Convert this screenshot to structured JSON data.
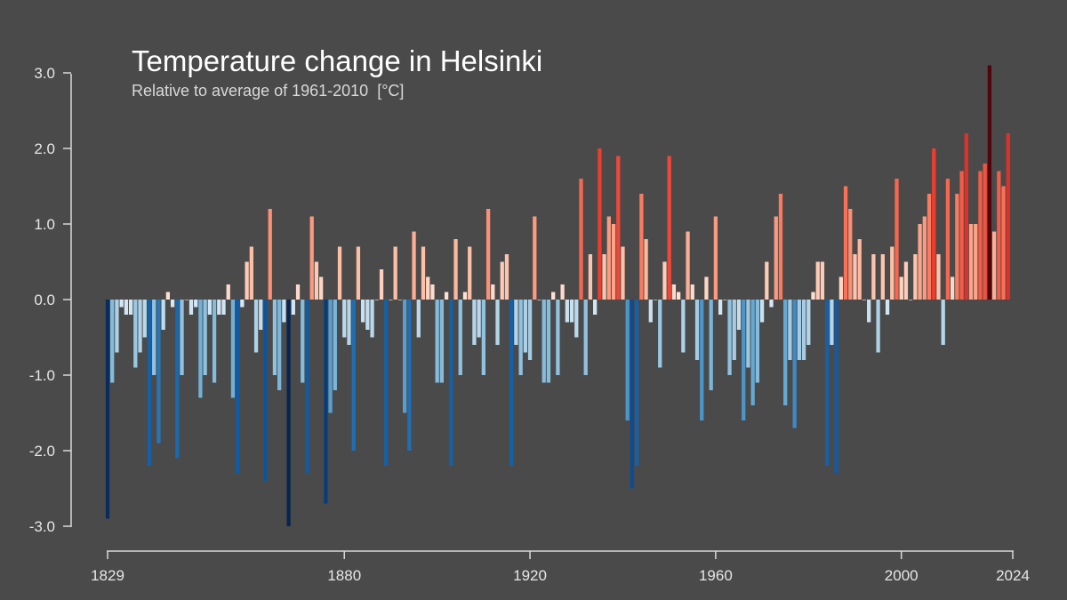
{
  "chart_data": {
    "type": "bar",
    "title": "Temperature change in Helsinki",
    "subtitle": "Relative to average of 1961-2010  [°C]",
    "xlabel": "",
    "ylabel": "",
    "x_start": 1829,
    "x_end": 2024,
    "xlim": [
      1829,
      2024
    ],
    "ylim": [
      -3.0,
      3.0
    ],
    "x_ticks": [
      "1829",
      "1880",
      "1920",
      "1960",
      "2000",
      "2024"
    ],
    "y_ticks": [
      "3.0",
      "2.0",
      "1.0",
      "0.0",
      "-1.0",
      "-2.0",
      "-3.0"
    ],
    "grid": false,
    "legend": "none",
    "colormap": "diverging blue-white-red",
    "colors": {
      "background": "#4a4a4a",
      "axis": "#d9d9d9",
      "text": "#e6e6e6"
    },
    "values": [
      -2.9,
      -1.1,
      -0.7,
      -0.1,
      -0.2,
      -0.2,
      -0.9,
      -0.7,
      -0.5,
      -2.2,
      -1.0,
      -1.9,
      -0.4,
      0.1,
      -0.1,
      -2.1,
      -1.0,
      0.0,
      -0.2,
      -0.1,
      -1.3,
      -1.0,
      -0.2,
      -1.1,
      -0.2,
      -0.2,
      0.2,
      -1.3,
      -2.3,
      -0.1,
      0.5,
      0.7,
      -0.7,
      -0.4,
      -2.4,
      1.2,
      -1.0,
      -1.2,
      -0.3,
      -3.0,
      -0.2,
      0.2,
      -1.1,
      -2.3,
      1.1,
      0.5,
      0.3,
      -2.7,
      -1.5,
      -1.2,
      0.7,
      -0.5,
      -0.6,
      -2.0,
      0.7,
      -0.3,
      -0.4,
      -0.5,
      0.0,
      0.4,
      -2.2,
      0.0,
      0.7,
      0.0,
      -1.5,
      -2.0,
      0.9,
      -0.5,
      0.7,
      0.3,
      0.2,
      -1.1,
      -1.1,
      0.1,
      -2.2,
      0.8,
      -1.0,
      0.1,
      0.7,
      -0.6,
      -0.5,
      -1.0,
      1.2,
      0.2,
      -0.6,
      0.5,
      0.6,
      -2.2,
      -0.6,
      -1.0,
      -0.7,
      -0.8,
      1.1,
      0.0,
      -1.1,
      -1.1,
      0.1,
      -1.0,
      0.2,
      -0.3,
      -0.3,
      -0.5,
      1.6,
      -1.0,
      0.6,
      -0.2,
      2.0,
      0.6,
      1.1,
      1.0,
      1.9,
      0.7,
      -1.6,
      -2.5,
      -2.2,
      1.4,
      0.8,
      -0.3,
      0.0,
      -0.9,
      0.5,
      1.9,
      0.2,
      0.1,
      -0.7,
      0.9,
      0.2,
      -0.8,
      -1.6,
      0.3,
      -1.2,
      1.1,
      -0.2,
      0.0,
      -1.0,
      -0.8,
      -0.4,
      -1.6,
      -0.9,
      -1.4,
      -1.1,
      -0.3,
      0.5,
      -0.1,
      1.1,
      1.4,
      -1.4,
      -0.8,
      -1.7,
      -0.8,
      -0.8,
      -0.6,
      0.1,
      0.5,
      0.5,
      -2.2,
      -0.6,
      -2.3,
      0.3,
      1.5,
      1.2,
      0.6,
      0.8,
      0.0,
      -0.3,
      0.6,
      -0.7,
      0.6,
      -0.2,
      0.7,
      1.6,
      0.3,
      0.5,
      0.0,
      0.6,
      1.0,
      1.1,
      1.4,
      2.0,
      0.6,
      -0.6,
      1.6,
      0.3,
      1.4,
      1.7,
      2.2,
      1.0,
      1.0,
      1.7,
      1.8,
      3.1,
      0.9,
      1.7,
      1.5,
      2.2
    ]
  }
}
